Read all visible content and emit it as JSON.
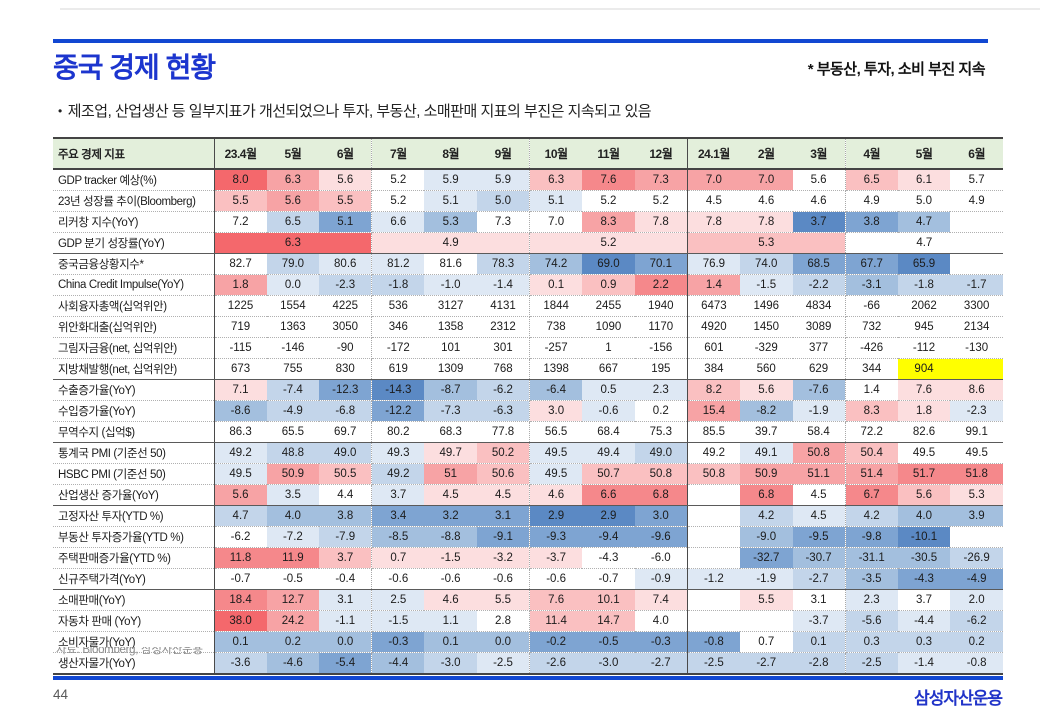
{
  "page": {
    "title": "중국 경제 현황",
    "title_note": "* 부동산, 투자, 소비 부진 지속",
    "bullet_marker": "•",
    "bullet": "제조업, 산업생산 등 일부지표가 개선되었으나 투자, 부동산, 소매판매 지표의 부진은 지속되고 있음",
    "source_note": "자료: Bloomberg, 삼성자산운용",
    "page_number": "44",
    "logo": "삼성자산운용",
    "accent_blue": "#1147D2",
    "title_blue": "#1C35CE",
    "logo_blue": "#2134C8",
    "header_green": "#E3EFDB"
  },
  "table": {
    "palette": {
      "R5": "#F4686C",
      "R4": "#F5888B",
      "R3": "#F7A3A5",
      "R2": "#FAC0C1",
      "R1": "#FCDEDF",
      "W": "",
      "B1": "#DEE8F4",
      "B2": "#C3D5EA",
      "B3": "#A3BFDE",
      "B4": "#7EA4D2",
      "B5": "#5B89C4",
      "Y": "#FFFF00"
    },
    "header": [
      "주요 경제 지표",
      "23.4월",
      "5월",
      "6월",
      "7월",
      "8월",
      "9월",
      "10월",
      "11월",
      "12월",
      "24.1월",
      "2월",
      "3월",
      "4월",
      "5월",
      "6월"
    ],
    "rows": [
      {
        "label": "GDP tracker 예상(%)",
        "values": [
          "8.0",
          "6.3",
          "5.6",
          "5.2",
          "5.9",
          "5.9",
          "6.3",
          "7.6",
          "7.3",
          "7.0",
          "7.0",
          "5.6",
          "6.5",
          "6.1",
          "5.7"
        ],
        "colors": [
          "R5",
          "R3",
          "R1",
          "W",
          "B1",
          "B1",
          "R2",
          "R4",
          "R3",
          "R3",
          "R3",
          "W",
          "R2",
          "R1",
          "W"
        ]
      },
      {
        "label": "23년 성장률 추이(Bloomberg)",
        "values": [
          "5.5",
          "5.6",
          "5.5",
          "5.2",
          "5.1",
          "5.0",
          "5.1",
          "5.2",
          "5.2",
          "4.5",
          "4.6",
          "4.6",
          "4.9",
          "5.0",
          "4.9"
        ],
        "colors": [
          "R2",
          "R3",
          "R2",
          "W",
          "B1",
          "B2",
          "B1",
          "W",
          "W",
          "W",
          "W",
          "W",
          "W",
          "W",
          "W"
        ]
      },
      {
        "label": "리커창 지수(YoY)",
        "values": [
          "7.2",
          "6.5",
          "5.1",
          "6.6",
          "5.3",
          "7.3",
          "7.0",
          "8.3",
          "7.8",
          "7.8",
          "7.8",
          "3.7",
          "3.8",
          "4.7",
          ""
        ],
        "colors": [
          "W",
          "B2",
          "B4",
          "B1",
          "B3",
          "W",
          "W",
          "R3",
          "R1",
          "R1",
          "R1",
          "B5",
          "B4",
          "B3",
          "W"
        ]
      },
      {
        "label": "GDP 분기 성장률(YoY)",
        "group_end": true,
        "spans": [
          {
            "value": "6.3",
            "color": "R5"
          },
          {
            "value": "4.9",
            "color": "R1"
          },
          {
            "value": "5.2",
            "color": "R1"
          },
          {
            "value": "5.3",
            "color": "R2"
          },
          {
            "value": "4.7",
            "color": "W"
          }
        ]
      },
      {
        "label": "중국금융상황지수*",
        "values": [
          "82.7",
          "79.0",
          "80.6",
          "81.2",
          "81.6",
          "78.3",
          "74.2",
          "69.0",
          "70.1",
          "76.9",
          "74.0",
          "68.5",
          "67.7",
          "65.9",
          ""
        ],
        "colors": [
          "W",
          "B2",
          "B1",
          "B1",
          "W",
          "B2",
          "B3",
          "B5",
          "B4",
          "B1",
          "B2",
          "B4",
          "B4",
          "B5",
          "W"
        ]
      },
      {
        "label": "China Credit Impulse(YoY)",
        "values": [
          "1.8",
          "0.0",
          "-2.3",
          "-1.8",
          "-1.0",
          "-1.4",
          "0.1",
          "0.9",
          "2.2",
          "1.4",
          "-1.5",
          "-2.2",
          "-3.1",
          "-1.8",
          "-1.7"
        ],
        "colors": [
          "R3",
          "B1",
          "B2",
          "B2",
          "B1",
          "B1",
          "R1",
          "R2",
          "R4",
          "R3",
          "B1",
          "B2",
          "B3",
          "B2",
          "B2"
        ]
      },
      {
        "label": "사회융자총액(십억위안)",
        "values": [
          "1225",
          "1554",
          "4225",
          "536",
          "3127",
          "4131",
          "1844",
          "2455",
          "1940",
          "6473",
          "1496",
          "4834",
          "-66",
          "2062",
          "3300"
        ],
        "colors": [
          "W",
          "W",
          "W",
          "W",
          "W",
          "W",
          "W",
          "W",
          "W",
          "W",
          "W",
          "W",
          "W",
          "W",
          "W"
        ]
      },
      {
        "label": "위안화대출(십억위안)",
        "values": [
          "719",
          "1363",
          "3050",
          "346",
          "1358",
          "2312",
          "738",
          "1090",
          "1170",
          "4920",
          "1450",
          "3089",
          "732",
          "945",
          "2134"
        ],
        "colors": [
          "W",
          "W",
          "W",
          "W",
          "W",
          "W",
          "W",
          "W",
          "W",
          "W",
          "W",
          "W",
          "W",
          "W",
          "W"
        ]
      },
      {
        "label": "그림자금융(net, 십억위안)",
        "values": [
          "-115",
          "-146",
          "-90",
          "-172",
          "101",
          "301",
          "-257",
          "1",
          "-156",
          "601",
          "-329",
          "377",
          "-426",
          "-112",
          "-130"
        ],
        "colors": [
          "W",
          "W",
          "W",
          "W",
          "W",
          "W",
          "W",
          "W",
          "W",
          "W",
          "W",
          "W",
          "W",
          "W",
          "W"
        ]
      },
      {
        "label": "지방채발행(net, 십억위안)",
        "group_end": true,
        "values": [
          "673",
          "755",
          "830",
          "619",
          "1309",
          "768",
          "1398",
          "667",
          "195",
          "384",
          "560",
          "629",
          "344",
          "904",
          ""
        ],
        "colors": [
          "W",
          "W",
          "W",
          "W",
          "W",
          "W",
          "W",
          "W",
          "W",
          "W",
          "W",
          "W",
          "W",
          "Y",
          "Y"
        ]
      },
      {
        "label": "수출증가율(YoY)",
        "values": [
          "7.1",
          "-7.4",
          "-12.3",
          "-14.3",
          "-8.7",
          "-6.2",
          "-6.4",
          "0.5",
          "2.3",
          "8.2",
          "5.6",
          "-7.6",
          "1.4",
          "7.6",
          "8.6"
        ],
        "colors": [
          "R1",
          "B2",
          "B4",
          "B5",
          "B3",
          "B2",
          "B3",
          "B1",
          "B1",
          "R2",
          "R1",
          "B3",
          "W",
          "R1",
          "R1"
        ]
      },
      {
        "label": "수입증가율(YoY)",
        "values": [
          "-8.6",
          "-4.9",
          "-6.8",
          "-12.2",
          "-7.3",
          "-6.3",
          "3.0",
          "-0.6",
          "0.2",
          "15.4",
          "-8.2",
          "-1.9",
          "8.3",
          "1.8",
          "-2.3"
        ],
        "colors": [
          "B3",
          "B2",
          "B2",
          "B4",
          "B2",
          "B2",
          "R1",
          "B1",
          "W",
          "R3",
          "B3",
          "B1",
          "R2",
          "R1",
          "B1"
        ]
      },
      {
        "label": "무역수지 (십억$)",
        "group_end": true,
        "values": [
          "86.3",
          "65.5",
          "69.7",
          "80.2",
          "68.3",
          "77.8",
          "56.5",
          "68.4",
          "75.3",
          "85.5",
          "39.7",
          "58.4",
          "72.2",
          "82.6",
          "99.1"
        ],
        "colors": [
          "W",
          "W",
          "W",
          "W",
          "W",
          "W",
          "W",
          "W",
          "W",
          "W",
          "W",
          "W",
          "W",
          "W",
          "W"
        ]
      },
      {
        "label": "통계국 PMI (기준선 50)",
        "values": [
          "49.2",
          "48.8",
          "49.0",
          "49.3",
          "49.7",
          "50.2",
          "49.5",
          "49.4",
          "49.0",
          "49.2",
          "49.1",
          "50.8",
          "50.4",
          "49.5",
          "49.5"
        ],
        "colors": [
          "B1",
          "B2",
          "B2",
          "B1",
          "R1",
          "R2",
          "B1",
          "B1",
          "B2",
          "W",
          "B1",
          "R3",
          "R2",
          "W",
          "W"
        ]
      },
      {
        "label": "HSBC PMI (기준선 50)",
        "values": [
          "49.5",
          "50.9",
          "50.5",
          "49.2",
          "51",
          "50.6",
          "49.5",
          "50.7",
          "50.8",
          "50.8",
          "50.9",
          "51.1",
          "51.4",
          "51.7",
          "51.8"
        ],
        "colors": [
          "B1",
          "R3",
          "R2",
          "B2",
          "R3",
          "R2",
          "B1",
          "R2",
          "R2",
          "R2",
          "R3",
          "R3",
          "R3",
          "R4",
          "R4"
        ]
      },
      {
        "label": "산업생산 증가율(YoY)",
        "group_end": true,
        "values": [
          "5.6",
          "3.5",
          "4.4",
          "3.7",
          "4.5",
          "4.5",
          "4.6",
          "6.6",
          "6.8",
          "",
          "6.8",
          "4.5",
          "6.7",
          "5.6",
          "5.3"
        ],
        "colors": [
          "R3",
          "B1",
          "W",
          "B1",
          "R1",
          "R1",
          "R1",
          "R4",
          "R4",
          "W",
          "R4",
          "W",
          "R4",
          "R2",
          "R1"
        ]
      },
      {
        "label": "고정자산 투자(YTD %)",
        "values": [
          "4.7",
          "4.0",
          "3.8",
          "3.4",
          "3.2",
          "3.1",
          "2.9",
          "2.9",
          "3.0",
          "",
          "4.2",
          "4.5",
          "4.2",
          "4.0",
          "3.9"
        ],
        "colors": [
          "B2",
          "B3",
          "B3",
          "B4",
          "B4",
          "B4",
          "B5",
          "B5",
          "B4",
          "W",
          "B2",
          "B1",
          "B2",
          "B3",
          "B3"
        ]
      },
      {
        "label": "부동산 투자증가율(YTD %)",
        "values": [
          "-6.2",
          "-7.2",
          "-7.9",
          "-8.5",
          "-8.8",
          "-9.1",
          "-9.3",
          "-9.4",
          "-9.6",
          "",
          "-9.0",
          "-9.5",
          "-9.8",
          "-10.1",
          ""
        ],
        "colors": [
          "W",
          "B1",
          "B2",
          "B3",
          "B3",
          "B4",
          "B4",
          "B4",
          "B4",
          "W",
          "B3",
          "B4",
          "B4",
          "B5",
          "W"
        ]
      },
      {
        "label": "주택판매증가율(YTD %)",
        "values": [
          "11.8",
          "11.9",
          "3.7",
          "0.7",
          "-1.5",
          "-3.2",
          "-3.7",
          "-4.3",
          "-6.0",
          "",
          "-32.7",
          "-30.7",
          "-31.1",
          "-30.5",
          "-26.9"
        ],
        "colors": [
          "R4",
          "R4",
          "R2",
          "R1",
          "R1",
          "R1",
          "R1",
          "W",
          "W",
          "W",
          "B4",
          "B3",
          "B3",
          "B3",
          "B2"
        ]
      },
      {
        "label": "신규주택가격(YoY)",
        "group_end": true,
        "values": [
          "-0.7",
          "-0.5",
          "-0.4",
          "-0.6",
          "-0.6",
          "-0.6",
          "-0.6",
          "-0.7",
          "-0.9",
          "-1.2",
          "-1.9",
          "-2.7",
          "-3.5",
          "-4.3",
          "-4.9"
        ],
        "colors": [
          "W",
          "W",
          "W",
          "W",
          "W",
          "W",
          "W",
          "W",
          "B1",
          "B1",
          "B1",
          "B2",
          "B3",
          "B4",
          "B4"
        ]
      },
      {
        "label": "소매판매(YoY)",
        "values": [
          "18.4",
          "12.7",
          "3.1",
          "2.5",
          "4.6",
          "5.5",
          "7.6",
          "10.1",
          "7.4",
          "",
          "5.5",
          "3.1",
          "2.3",
          "3.7",
          "2.0"
        ],
        "colors": [
          "R4",
          "R3",
          "B1",
          "B1",
          "R1",
          "R1",
          "R2",
          "R2",
          "R1",
          "W",
          "R1",
          "W",
          "B1",
          "W",
          "B1"
        ]
      },
      {
        "label": "자동차 판매 (YoY)",
        "values": [
          "38.0",
          "24.2",
          "-1.1",
          "-1.5",
          "1.1",
          "2.8",
          "11.4",
          "14.7",
          "4.0",
          "",
          "",
          "-3.7",
          "-5.6",
          "-4.4",
          "-6.2"
        ],
        "colors": [
          "R5",
          "R3",
          "B1",
          "B1",
          "B1",
          "W",
          "R2",
          "R2",
          "W",
          "W",
          "W",
          "B1",
          "B2",
          "B1",
          "B2"
        ]
      },
      {
        "label": "소비자물가(YoY)",
        "values": [
          "0.1",
          "0.2",
          "0.0",
          "-0.3",
          "0.1",
          "0.0",
          "-0.2",
          "-0.5",
          "-0.3",
          "-0.8",
          "0.7",
          "0.1",
          "0.3",
          "0.3",
          "0.2"
        ],
        "colors": [
          "B3",
          "B3",
          "B3",
          "B4",
          "B3",
          "B3",
          "B4",
          "B4",
          "B4",
          "B4",
          "W",
          "B2",
          "B2",
          "B2",
          "B2"
        ]
      },
      {
        "label": "생산자물가(YoY)",
        "values": [
          "-3.6",
          "-4.6",
          "-5.4",
          "-4.4",
          "-3.0",
          "-2.5",
          "-2.6",
          "-3.0",
          "-2.7",
          "-2.5",
          "-2.7",
          "-2.8",
          "-2.5",
          "-1.4",
          "-0.8"
        ],
        "colors": [
          "B2",
          "B3",
          "B4",
          "B3",
          "B2",
          "B1",
          "B2",
          "B2",
          "B2",
          "B2",
          "B2",
          "B2",
          "B2",
          "B1",
          "B1"
        ]
      }
    ]
  }
}
